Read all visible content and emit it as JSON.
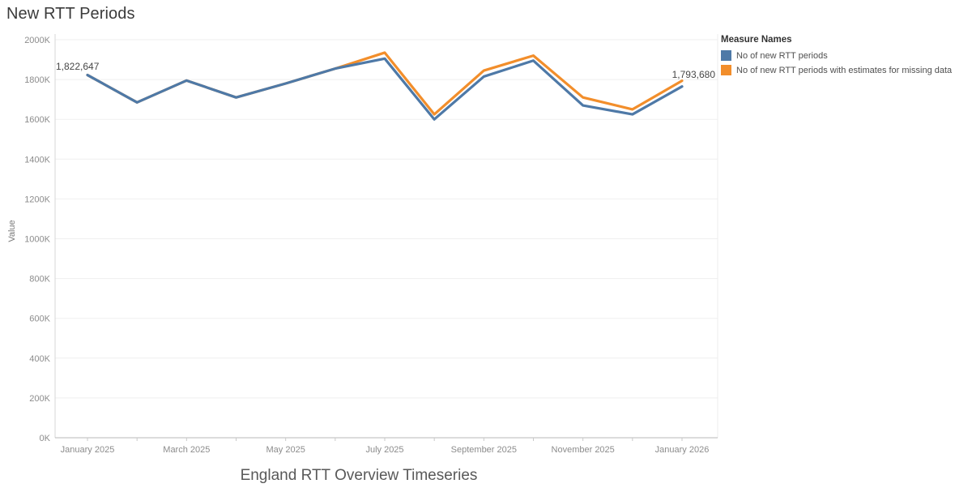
{
  "page": {
    "title": "New RTT Periods",
    "bottom_title": "England RTT Overview Timeseries"
  },
  "y_axis_title": "Value",
  "legend": {
    "title": "Measure Names",
    "items": [
      {
        "label": "No of new RTT periods",
        "color": "#4e79a7"
      },
      {
        "label": "No of new RTT periods with estimates for missing data",
        "color": "#f28e2b"
      }
    ]
  },
  "annotations": {
    "first": "1,822,647",
    "last": "1,793,680"
  },
  "chart_data": {
    "type": "line",
    "title": "New RTT Periods",
    "xlabel": "",
    "ylabel": "Value",
    "x": [
      "January 2025",
      "February 2025",
      "March 2025",
      "April 2025",
      "May 2025",
      "June 2025",
      "July 2025",
      "August 2025",
      "September 2025",
      "October 2025",
      "November 2025",
      "December 2025",
      "January 2026"
    ],
    "x_tick_label_indices": [
      0,
      2,
      4,
      6,
      8,
      10,
      12
    ],
    "x_tick_labels": [
      "January 2025",
      "March 2025",
      "May 2025",
      "July 2025",
      "September 2025",
      "November 2025",
      "January 2026"
    ],
    "y_tick_values": [
      0,
      200000,
      400000,
      600000,
      800000,
      1000000,
      1200000,
      1400000,
      1600000,
      1800000,
      2000000
    ],
    "y_tick_labels": [
      "0K",
      "200K",
      "400K",
      "600K",
      "800K",
      "1000K",
      "1200K",
      "1400K",
      "1600K",
      "1800K",
      "2000K"
    ],
    "ylim": [
      0,
      2000000
    ],
    "grid": "horizontal",
    "legend_position": "top-right",
    "series": [
      {
        "name": "No of new RTT periods",
        "color": "#4e79a7",
        "values": [
          1822647,
          1685000,
          1795000,
          1710000,
          1780000,
          1855000,
          1905000,
          1600000,
          1815000,
          1895000,
          1670000,
          1625000,
          1765000
        ]
      },
      {
        "name": "No of new RTT periods with estimates for missing data",
        "color": "#f28e2b",
        "values": [
          1822647,
          1685000,
          1795000,
          1710000,
          1780000,
          1855000,
          1935000,
          1625000,
          1845000,
          1920000,
          1710000,
          1650000,
          1793680
        ]
      }
    ],
    "annotations": [
      {
        "text": "1,822,647",
        "series": "No of new RTT periods",
        "x": "January 2025"
      },
      {
        "text": "1,793,680",
        "series": "No of new RTT periods with estimates for missing data",
        "x": "January 2026"
      }
    ]
  }
}
